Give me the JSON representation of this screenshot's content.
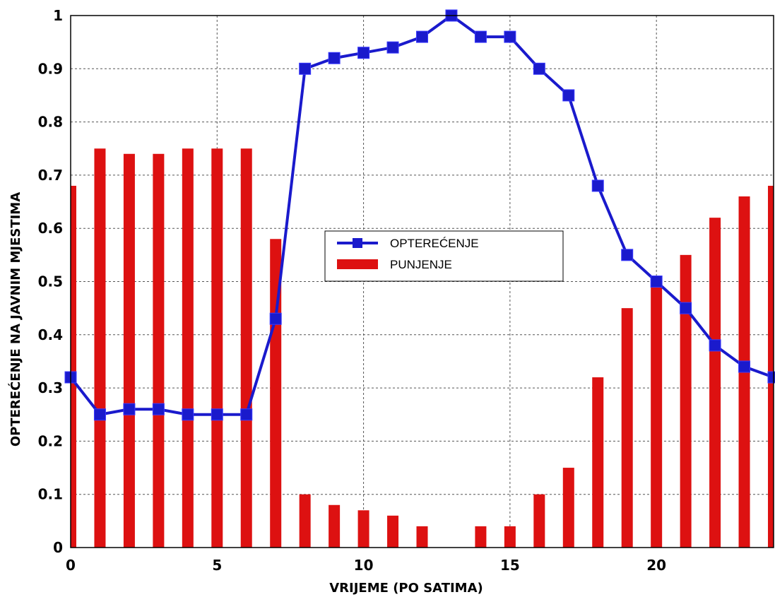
{
  "chart_data": {
    "type": "bar",
    "xlabel": "VRIJEME (PO SATIMA)",
    "ylabel": "OPTEREĆENJE NA JAVNIM MJESTIMA",
    "xlim": [
      0,
      24
    ],
    "ylim": [
      0,
      1
    ],
    "x_ticks": [
      "0",
      "5",
      "10",
      "15",
      "20"
    ],
    "x_tick_values": [
      0,
      5,
      10,
      15,
      20
    ],
    "y_ticks": [
      "0",
      "0.1",
      "0.2",
      "0.3",
      "0.4",
      "0.5",
      "0.6",
      "0.7",
      "0.8",
      "0.9",
      "1"
    ],
    "y_tick_values": [
      0,
      0.1,
      0.2,
      0.3,
      0.4,
      0.5,
      0.6,
      0.7,
      0.8,
      0.9,
      1
    ],
    "grid": true,
    "legend_position": "center",
    "x": [
      0,
      1,
      2,
      3,
      4,
      5,
      6,
      7,
      8,
      9,
      10,
      11,
      12,
      13,
      14,
      15,
      16,
      17,
      18,
      19,
      20,
      21,
      22,
      23,
      24
    ],
    "series": [
      {
        "name": "OPTEREĆENJE",
        "type": "line",
        "marker": "square",
        "color": "#1a1acc",
        "values": [
          0.32,
          0.25,
          0.26,
          0.26,
          0.25,
          0.25,
          0.25,
          0.43,
          0.9,
          0.92,
          0.93,
          0.94,
          0.96,
          1.0,
          0.96,
          0.96,
          0.9,
          0.85,
          0.68,
          0.55,
          0.5,
          0.45,
          0.38,
          0.34,
          0.32
        ]
      },
      {
        "name": "PUNJENJE",
        "type": "bar",
        "color": "#dd1111",
        "values": [
          0.68,
          0.75,
          0.74,
          0.74,
          0.75,
          0.75,
          0.75,
          0.58,
          0.1,
          0.08,
          0.07,
          0.06,
          0.04,
          0.0,
          0.04,
          0.04,
          0.1,
          0.15,
          0.32,
          0.45,
          0.51,
          0.55,
          0.62,
          0.66,
          0.68
        ]
      }
    ]
  }
}
